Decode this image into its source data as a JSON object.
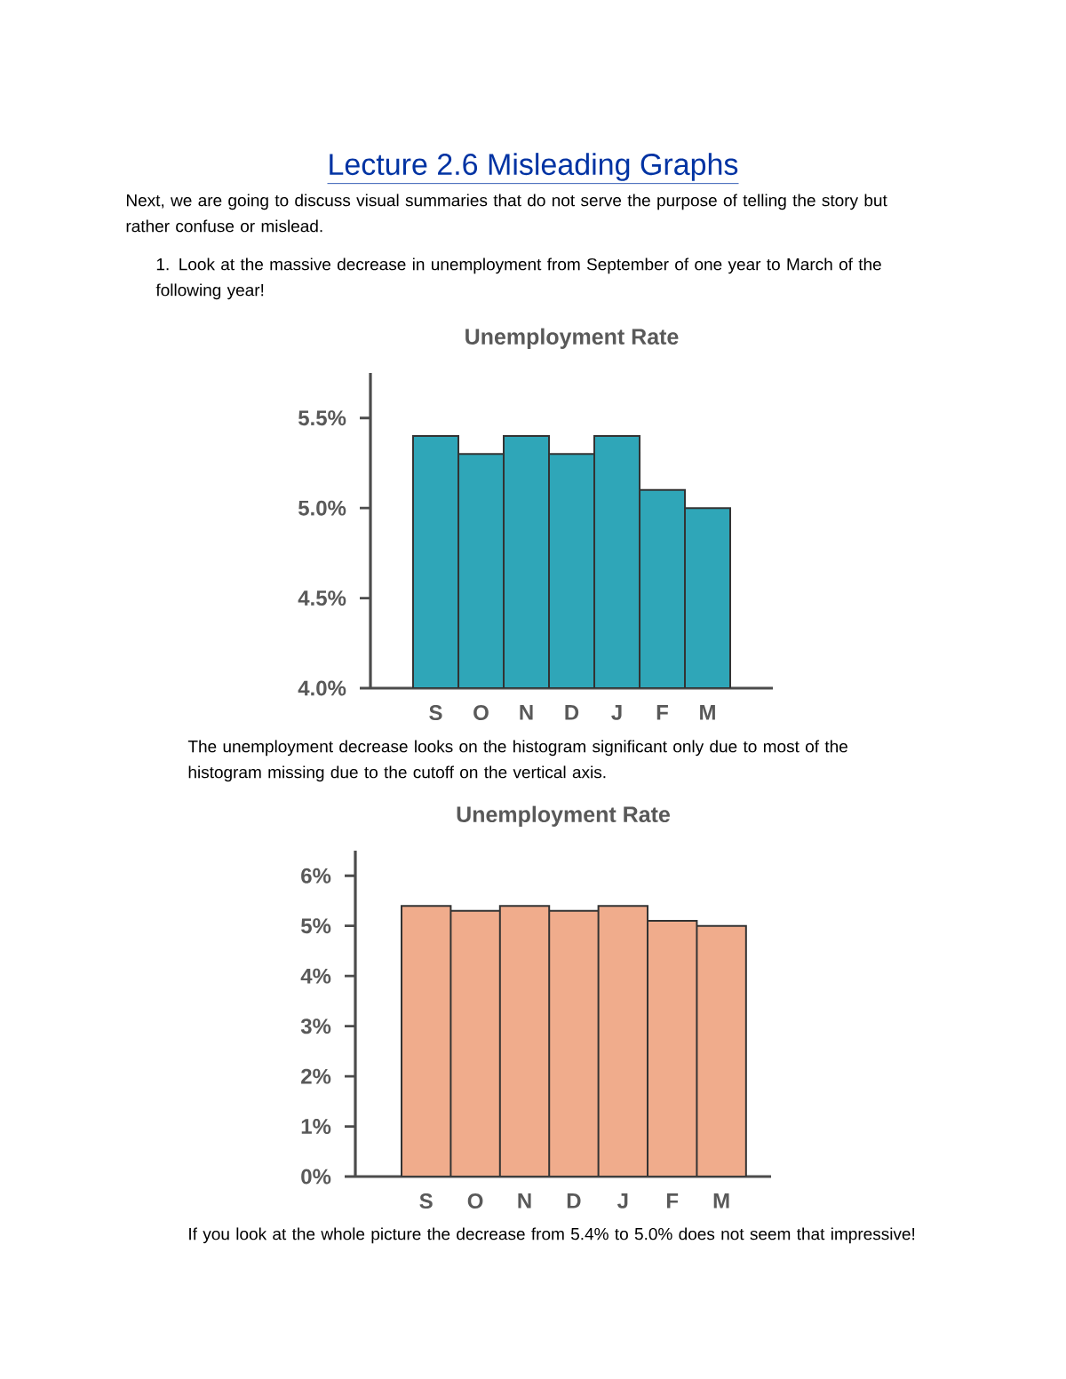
{
  "chart_data": [
    {
      "type": "bar",
      "title": "Unemployment Rate",
      "categories": [
        "S",
        "O",
        "N",
        "D",
        "J",
        "F",
        "M"
      ],
      "values": [
        5.4,
        5.3,
        5.4,
        5.3,
        5.4,
        5.1,
        5.0
      ],
      "color": "#2fa6b8",
      "ylim": [
        4.0,
        5.75
      ],
      "yticks": [
        {
          "value": 4.0,
          "label": "4.0%"
        },
        {
          "value": 4.5,
          "label": "4.5%"
        },
        {
          "value": 5.0,
          "label": "5.0%"
        },
        {
          "value": 5.5,
          "label": "5.5%"
        }
      ],
      "annotations": [
        "Lecture 2.6 Misleading Graphs",
        "Next, we are going to discuss visual summaries that do not serve the purpose of telling the story but rather confuse or mislead.",
        "1. Look at the massive decrease in unemployment from September of one year to March of the following year!",
        "The unemployment decrease looks on the histogram significant only due to most of the histogram missing due to the cutoff on the vertical axis."
      ]
    },
    {
      "type": "bar",
      "title": "Unemployment Rate",
      "categories": [
        "S",
        "O",
        "N",
        "D",
        "J",
        "F",
        "M"
      ],
      "values": [
        5.4,
        5.3,
        5.4,
        5.3,
        5.4,
        5.1,
        5.0
      ],
      "color": "#f0ac8c",
      "ylim": [
        0,
        6.5
      ],
      "yticks": [
        {
          "value": 0,
          "label": "0%"
        },
        {
          "value": 1,
          "label": "1%"
        },
        {
          "value": 2,
          "label": "2%"
        },
        {
          "value": 3,
          "label": "3%"
        },
        {
          "value": 4,
          "label": "4%"
        },
        {
          "value": 5,
          "label": "5%"
        },
        {
          "value": 6,
          "label": "6%"
        }
      ],
      "annotations": [
        "If you look at the whole picture the decrease from 5.4% to 5.0% does not seem that impressive!"
      ]
    }
  ]
}
